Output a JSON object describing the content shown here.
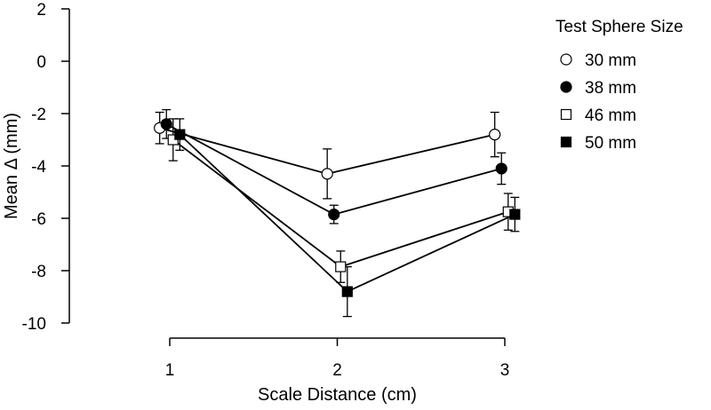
{
  "chart_data": {
    "type": "line",
    "title": "",
    "xlabel": "Scale Distance (cm)",
    "ylabel": "Mean Δ (mm)",
    "x": [
      1,
      2,
      3
    ],
    "x_tick_labels": [
      "1",
      "2",
      "3"
    ],
    "xlim": [
      1,
      3
    ],
    "ylim": [
      -10,
      2
    ],
    "y_ticks": [
      2,
      0,
      -2,
      -4,
      -6,
      -8,
      -10
    ],
    "y_tick_labels": [
      "2",
      "0",
      "-2",
      "-4",
      "-6",
      "-8",
      "-10"
    ],
    "grid": false,
    "legend": {
      "title": "Test Sphere Size",
      "placement": "top-right"
    },
    "series": [
      {
        "name": "30 mm",
        "marker": "circle-open",
        "x_offset": -0.06,
        "values": [
          -2.55,
          -4.3,
          -2.8
        ],
        "error": [
          0.6,
          0.95,
          0.85
        ]
      },
      {
        "name": "38 mm",
        "marker": "circle-filled",
        "x_offset": -0.02,
        "values": [
          -2.4,
          -5.85,
          -4.1
        ],
        "error": [
          0.55,
          0.35,
          0.6
        ]
      },
      {
        "name": "46 mm",
        "marker": "square-open",
        "x_offset": 0.02,
        "values": [
          -3.0,
          -7.85,
          -5.75
        ],
        "error": [
          0.8,
          0.6,
          0.7
        ]
      },
      {
        "name": "50 mm",
        "marker": "square-filled",
        "x_offset": 0.06,
        "values": [
          -2.8,
          -8.8,
          -5.85
        ],
        "error": [
          0.6,
          0.95,
          0.65
        ]
      }
    ]
  }
}
